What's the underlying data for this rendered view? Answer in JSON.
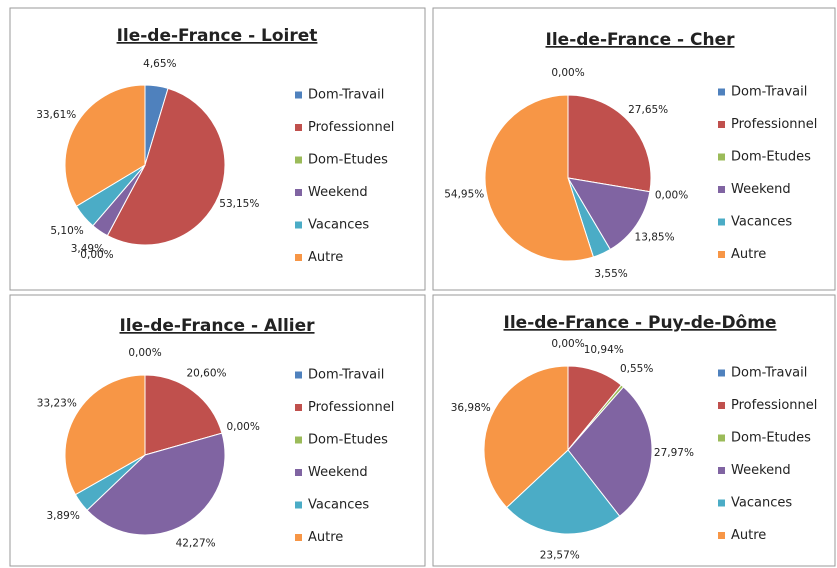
{
  "chart_data": [
    {
      "type": "pie",
      "title": "Ile-de-France - Loiret",
      "categories": [
        "Dom-Travail",
        "Professionnel",
        "Dom-Etudes",
        "Weekend",
        "Vacances",
        "Autre"
      ],
      "colors": [
        "#4f81bd",
        "#c0504d",
        "#9bbb59",
        "#8064a2",
        "#4bacc6",
        "#f79646"
      ],
      "values": [
        4.65,
        53.15,
        0.0,
        3.49,
        5.1,
        33.61
      ],
      "value_labels": [
        "4,65%",
        "53,15%",
        "0,00%",
        "3,49%",
        "5,10%",
        "33,61%"
      ]
    },
    {
      "type": "pie",
      "title": "Ile-de-France - Cher",
      "categories": [
        "Dom-Travail",
        "Professionnel",
        "Dom-Etudes",
        "Weekend",
        "Vacances",
        "Autre"
      ],
      "colors": [
        "#4f81bd",
        "#c0504d",
        "#9bbb59",
        "#8064a2",
        "#4bacc6",
        "#f79646"
      ],
      "values": [
        0.0,
        27.65,
        0.0,
        13.85,
        3.55,
        54.95
      ],
      "value_labels": [
        "0,00%",
        "27,65%",
        "0,00%",
        "13,85%",
        "3,55%",
        "54,95%"
      ]
    },
    {
      "type": "pie",
      "title": "Ile-de-France - Allier",
      "categories": [
        "Dom-Travail",
        "Professionnel",
        "Dom-Etudes",
        "Weekend",
        "Vacances",
        "Autre"
      ],
      "colors": [
        "#4f81bd",
        "#c0504d",
        "#9bbb59",
        "#8064a2",
        "#4bacc6",
        "#f79646"
      ],
      "values": [
        0.0,
        20.6,
        0.0,
        42.27,
        3.89,
        33.23
      ],
      "value_labels": [
        "0,00%",
        "20,60%",
        "0,00%",
        "42,27%",
        "3,89%",
        "33,23%"
      ]
    },
    {
      "type": "pie",
      "title": "Ile-de-France - Puy-de-Dôme",
      "categories": [
        "Dom-Travail",
        "Professionnel",
        "Dom-Etudes",
        "Weekend",
        "Vacances",
        "Autre"
      ],
      "colors": [
        "#4f81bd",
        "#c0504d",
        "#9bbb59",
        "#8064a2",
        "#4bacc6",
        "#f79646"
      ],
      "values": [
        0.0,
        10.94,
        0.55,
        27.97,
        23.57,
        36.98
      ],
      "value_labels": [
        "0,00%",
        "10,94%",
        "0,55%",
        "27,97%",
        "23,57%",
        "36,98%"
      ]
    }
  ]
}
